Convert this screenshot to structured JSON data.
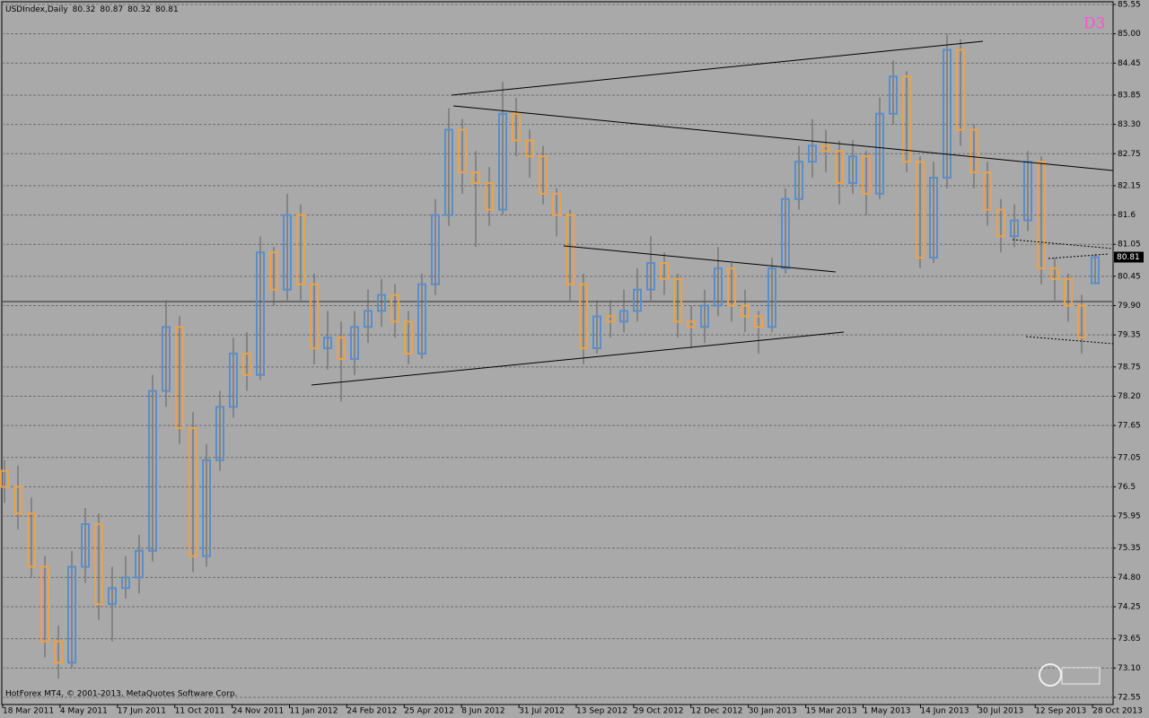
{
  "chart_data": {
    "type": "candlestick",
    "symbol": "USDIndex,Daily",
    "footer": "HotForex MT4, © 2001-2013, MetaQuotes Software Corp.",
    "badge": "D3",
    "up_color": "#5a8ecb",
    "down_color": "#e9a24c",
    "ylim": [
      72.55,
      85.55
    ],
    "yticks": [
      85.55,
      {
        "value": 85.0,
        "label": "85.00"
      },
      84.45,
      83.85,
      {
        "value": 83.3,
        "label": "83.30"
      },
      82.75,
      82.15,
      81.6,
      81.05,
      80.45,
      {
        "value": 79.9,
        "label": "79.90"
      },
      79.35,
      78.75,
      {
        "value": 78.2,
        "label": "78.20"
      },
      77.65,
      77.05,
      76.5,
      75.95,
      75.35,
      {
        "value": 74.8,
        "label": "74.80"
      },
      74.25,
      73.65,
      {
        "value": 73.1,
        "label": "73.10"
      },
      72.55
    ],
    "x_labels": [
      "18 Mar 2011",
      "4 May 2011",
      "17 Jun 2011",
      "11 Oct 2011",
      "24 Nov 2011",
      "11 Jan 2012",
      "24 Feb 2012",
      "25 Apr 2012",
      "8 Jun 2012",
      "31 Jul 2012",
      "13 Sep 2012",
      "29 Oct 2012",
      "12 Dec 2012",
      "30 Jan 2013",
      "15 Mar 2013",
      "1 May 2013",
      "14 Jun 2013",
      "30 Jul 2013",
      "12 Sep 2013",
      "28 Oct 2013"
    ],
    "grid": true,
    "ohlc": [
      [
        76.8,
        77.0,
        76.2,
        76.5
      ],
      [
        76.5,
        76.9,
        75.7,
        76.0
      ],
      [
        76.0,
        76.3,
        74.8,
        75.0
      ],
      [
        75.0,
        75.2,
        73.3,
        73.6
      ],
      [
        73.6,
        73.9,
        72.9,
        73.2
      ],
      [
        73.2,
        75.3,
        73.1,
        75.0
      ],
      [
        75.0,
        76.1,
        74.7,
        75.8
      ],
      [
        75.8,
        76.0,
        74.0,
        74.3
      ],
      [
        74.3,
        75.0,
        73.6,
        74.6
      ],
      [
        74.6,
        75.2,
        74.4,
        74.8
      ],
      [
        74.8,
        75.6,
        74.5,
        75.3
      ],
      [
        75.3,
        78.6,
        75.1,
        78.3
      ],
      [
        78.3,
        80.0,
        78.0,
        79.5
      ],
      [
        79.5,
        79.7,
        77.3,
        77.6
      ],
      [
        77.6,
        77.9,
        74.9,
        75.2
      ],
      [
        75.2,
        77.3,
        75.0,
        77.0
      ],
      [
        77.0,
        78.3,
        76.8,
        78.0
      ],
      [
        78.0,
        79.3,
        77.8,
        79.0
      ],
      [
        79.0,
        79.4,
        78.3,
        78.6
      ],
      [
        78.6,
        81.2,
        78.5,
        80.9
      ],
      [
        80.9,
        81.0,
        79.9,
        80.2
      ],
      [
        80.2,
        82.0,
        80.0,
        81.6
      ],
      [
        81.6,
        81.8,
        80.0,
        80.3
      ],
      [
        80.3,
        80.5,
        78.8,
        79.1
      ],
      [
        79.1,
        79.8,
        78.7,
        79.3
      ],
      [
        79.3,
        79.6,
        78.1,
        78.9
      ],
      [
        78.9,
        79.8,
        78.6,
        79.5
      ],
      [
        79.5,
        80.2,
        79.2,
        79.8
      ],
      [
        79.8,
        80.4,
        79.5,
        80.1
      ],
      [
        80.1,
        80.3,
        79.3,
        79.6
      ],
      [
        79.6,
        79.8,
        78.8,
        79.0
      ],
      [
        79.0,
        80.5,
        78.9,
        80.3
      ],
      [
        80.3,
        81.9,
        80.1,
        81.6
      ],
      [
        81.6,
        83.6,
        81.4,
        83.2
      ],
      [
        83.2,
        83.4,
        82.0,
        82.4
      ],
      [
        82.4,
        82.8,
        81.0,
        82.2
      ],
      [
        82.2,
        82.5,
        81.4,
        81.7
      ],
      [
        81.7,
        84.1,
        81.6,
        83.5
      ],
      [
        83.5,
        83.8,
        82.7,
        83.0
      ],
      [
        83.0,
        83.2,
        82.3,
        82.7
      ],
      [
        82.7,
        82.9,
        81.8,
        82.0
      ],
      [
        82.0,
        82.1,
        81.2,
        81.6
      ],
      [
        81.6,
        81.7,
        80.0,
        80.3
      ],
      [
        80.3,
        80.5,
        78.8,
        79.1
      ],
      [
        79.1,
        80.0,
        79.0,
        79.7
      ],
      [
        79.7,
        80.0,
        79.3,
        79.6
      ],
      [
        79.6,
        80.2,
        79.4,
        79.8
      ],
      [
        79.8,
        80.6,
        79.6,
        80.2
      ],
      [
        80.2,
        81.2,
        80.0,
        80.7
      ],
      [
        80.7,
        80.9,
        80.1,
        80.4
      ],
      [
        80.4,
        80.5,
        79.3,
        79.6
      ],
      [
        79.6,
        79.9,
        79.1,
        79.5
      ],
      [
        79.5,
        80.2,
        79.2,
        79.9
      ],
      [
        79.9,
        81.0,
        79.7,
        80.6
      ],
      [
        80.6,
        80.7,
        79.6,
        79.9
      ],
      [
        79.9,
        80.2,
        79.4,
        79.7
      ],
      [
        79.7,
        79.8,
        79.0,
        79.5
      ],
      [
        79.5,
        80.8,
        79.4,
        80.6
      ],
      [
        80.6,
        82.1,
        80.5,
        81.9
      ],
      [
        81.9,
        82.9,
        81.7,
        82.6
      ],
      [
        82.6,
        83.4,
        82.3,
        82.9
      ],
      [
        82.9,
        83.2,
        82.4,
        82.8
      ],
      [
        82.8,
        83.0,
        81.8,
        82.2
      ],
      [
        82.2,
        83.0,
        82.0,
        82.7
      ],
      [
        82.7,
        82.8,
        81.6,
        82.0
      ],
      [
        82.0,
        83.8,
        81.9,
        83.5
      ],
      [
        83.5,
        84.5,
        83.3,
        84.2
      ],
      [
        84.2,
        84.3,
        82.4,
        82.6
      ],
      [
        82.6,
        82.7,
        80.6,
        80.8
      ],
      [
        80.8,
        82.6,
        80.7,
        82.3
      ],
      [
        82.3,
        85.0,
        82.1,
        84.7
      ],
      [
        84.7,
        84.9,
        82.9,
        83.2
      ],
      [
        83.2,
        83.3,
        82.1,
        82.4
      ],
      [
        82.4,
        82.6,
        81.4,
        81.7
      ],
      [
        81.7,
        81.9,
        80.9,
        81.2
      ],
      [
        81.2,
        81.8,
        81.0,
        81.5
      ],
      [
        81.5,
        82.8,
        81.3,
        82.6
      ],
      [
        82.6,
        82.7,
        80.3,
        80.6
      ],
      [
        80.6,
        80.8,
        80.0,
        80.4
      ],
      [
        80.4,
        80.5,
        79.6,
        79.9
      ],
      [
        79.9,
        80.1,
        79.0,
        79.3
      ],
      [
        80.32,
        80.87,
        80.32,
        80.81
      ]
    ]
  }
}
